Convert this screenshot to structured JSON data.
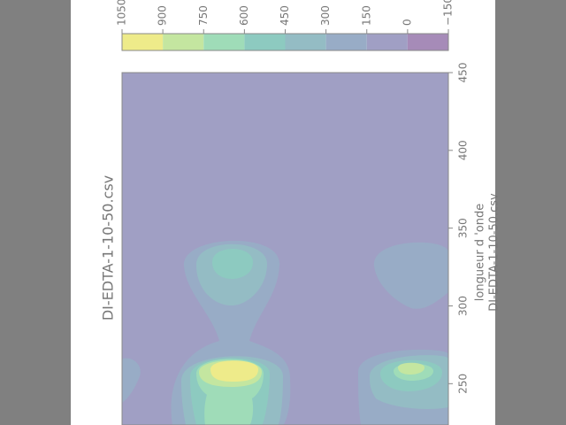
{
  "chart_data": {
    "type": "contour",
    "title": "DI-EDTA-1-10-50.csv",
    "xlabel": "longueur d 'onde",
    "ylabel": "DI-EDTA-1-10-50.csv",
    "xlim": [
      224,
      450
    ],
    "xticks": [
      250,
      300,
      350,
      400,
      450
    ],
    "colorbar": {
      "ticks": [
        1050,
        900,
        750,
        600,
        450,
        300,
        150,
        0,
        {
          "value": -150,
          "label": "−150"
        }
      ],
      "colors": [
        "#eeeb8a",
        "#c4e6a0",
        "#9fdcb8",
        "#8dcac0",
        "#94bcc4",
        "#98acc6",
        "#a09fc4",
        "#a68bb8"
      ]
    }
  }
}
